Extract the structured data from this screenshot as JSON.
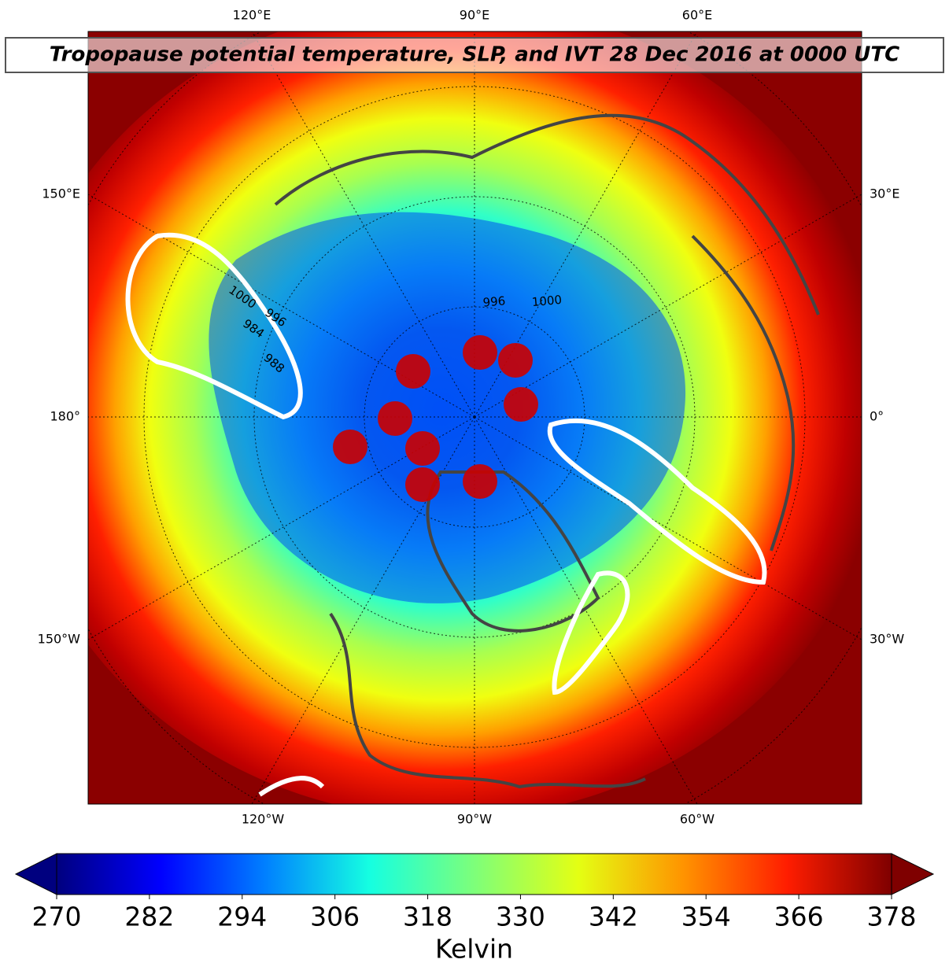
{
  "title": "Tropopause potential temperature, SLP, and IVT 28 Dec 2016 at 0000 UTC",
  "longitude_labels": {
    "top": [
      "120°E",
      "90°E",
      "60°E"
    ],
    "bottom": [
      "120°W",
      "90°W",
      "60°W"
    ],
    "left": [
      "150°E",
      "180°",
      "150°W"
    ],
    "right": [
      "30°E",
      "0°",
      "30°W"
    ]
  },
  "contour_labels": [
    "1000",
    "996",
    "984",
    "988",
    "996",
    "1000"
  ],
  "colorbar": {
    "label": "Kelvin",
    "lim": [
      270,
      378
    ],
    "ticks": [
      270,
      282,
      294,
      306,
      318,
      330,
      342,
      354,
      366,
      378
    ],
    "colormap": [
      "#00007f",
      "#0000ff",
      "#0080ff",
      "#15ffe1",
      "#7dff7a",
      "#e4ff13",
      "#ff9400",
      "#ff1d00",
      "#7f0000"
    ]
  }
}
